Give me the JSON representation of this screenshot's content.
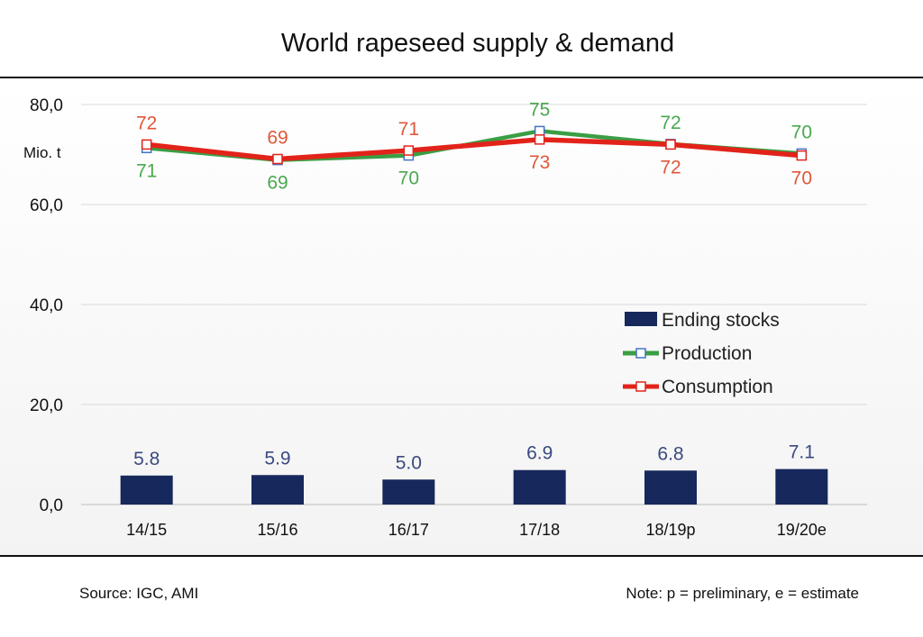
{
  "chart_data": {
    "type": "bar+line",
    "title": "World rapeseed supply & demand",
    "unit_label": "Mio. t",
    "categories": [
      "14/15",
      "15/16",
      "16/17",
      "17/18",
      "18/19p",
      "19/20e"
    ],
    "y_ticks": [
      "0,0",
      "20,0",
      "40,0",
      "60,0",
      "80,0"
    ],
    "ylim": [
      0,
      80
    ],
    "grid": true,
    "legend_position": "right-center",
    "series": [
      {
        "name": "Ending stocks",
        "kind": "bar",
        "color": "#16285c",
        "label_color": "#3b4a80",
        "values": [
          5.8,
          5.9,
          5.0,
          6.9,
          6.8,
          7.1
        ],
        "labels": [
          "5.8",
          "5.9",
          "5.0",
          "6.9",
          "6.8",
          "7.1"
        ]
      },
      {
        "name": "Production",
        "kind": "line",
        "color": "#3a9e44",
        "marker_color": "#4472c4",
        "label_color": "#4aa84f",
        "values": [
          71.3,
          68.9,
          69.8,
          74.7,
          72.1,
          70.2
        ],
        "labels": [
          "71",
          "69",
          "70",
          "75",
          "72",
          "70"
        ]
      },
      {
        "name": "Consumption",
        "kind": "line",
        "color": "#e2231a",
        "marker_color": "#e2231a",
        "label_color": "#e0573b",
        "values": [
          72.0,
          69.1,
          70.8,
          73.0,
          72.0,
          69.8
        ],
        "labels": [
          "72",
          "69",
          "71",
          "73",
          "72",
          "70"
        ]
      }
    ]
  },
  "footer": {
    "source": "Source: IGC, AMI",
    "note": "Note: p = preliminary, e = estimate"
  }
}
